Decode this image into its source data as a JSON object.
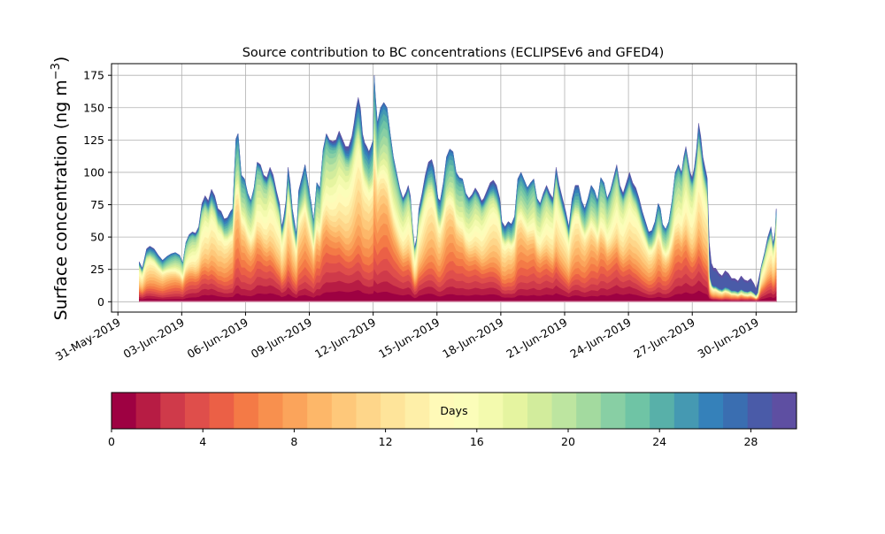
{
  "chart_data": {
    "type": "area",
    "title": "Source contribution to BC concentrations (ECLIPSEv6 and GFED4)",
    "ylabel_main": "Surface concentration (ng m",
    "ylabel_sup": "−3",
    "ylabel_close": ")",
    "xlabel": "",
    "ylim": [
      -8,
      184
    ],
    "xlim": [
      -0.3,
      31.9
    ],
    "x_start_label": "31-May-2019",
    "grid": true,
    "yticks": [
      0,
      25,
      50,
      75,
      100,
      125,
      150,
      175
    ],
    "xticks": [
      {
        "x": 0,
        "label": "31-May-2019"
      },
      {
        "x": 3,
        "label": "03-Jun-2019"
      },
      {
        "x": 6,
        "label": "06-Jun-2019"
      },
      {
        "x": 9,
        "label": "09-Jun-2019"
      },
      {
        "x": 12,
        "label": "12-Jun-2019"
      },
      {
        "x": 15,
        "label": "15-Jun-2019"
      },
      {
        "x": 18,
        "label": "18-Jun-2019"
      },
      {
        "x": 21,
        "label": "21-Jun-2019"
      },
      {
        "x": 24,
        "label": "24-Jun-2019"
      },
      {
        "x": 27,
        "label": "27-Jun-2019"
      },
      {
        "x": 30,
        "label": "30-Jun-2019"
      }
    ],
    "total_series": [
      [
        1.0,
        31
      ],
      [
        1.15,
        26
      ],
      [
        1.35,
        41
      ],
      [
        1.5,
        43
      ],
      [
        1.7,
        41
      ],
      [
        1.9,
        36
      ],
      [
        2.1,
        32
      ],
      [
        2.3,
        35
      ],
      [
        2.5,
        37
      ],
      [
        2.7,
        38
      ],
      [
        2.9,
        36
      ],
      [
        3.05,
        30
      ],
      [
        3.2,
        46
      ],
      [
        3.35,
        52
      ],
      [
        3.5,
        54
      ],
      [
        3.65,
        53
      ],
      [
        3.8,
        58
      ],
      [
        3.95,
        76
      ],
      [
        4.1,
        82
      ],
      [
        4.25,
        78
      ],
      [
        4.4,
        87
      ],
      [
        4.55,
        82
      ],
      [
        4.7,
        72
      ],
      [
        4.85,
        70
      ],
      [
        5.0,
        64
      ],
      [
        5.15,
        65
      ],
      [
        5.3,
        70
      ],
      [
        5.4,
        72
      ],
      [
        5.55,
        126
      ],
      [
        5.65,
        130
      ],
      [
        5.8,
        98
      ],
      [
        5.95,
        95
      ],
      [
        6.1,
        84
      ],
      [
        6.25,
        78
      ],
      [
        6.4,
        88
      ],
      [
        6.55,
        108
      ],
      [
        6.7,
        106
      ],
      [
        6.85,
        98
      ],
      [
        7.0,
        96
      ],
      [
        7.15,
        104
      ],
      [
        7.3,
        98
      ],
      [
        7.45,
        86
      ],
      [
        7.6,
        76
      ],
      [
        7.7,
        58
      ],
      [
        7.8,
        66
      ],
      [
        7.9,
        78
      ],
      [
        8.0,
        104
      ],
      [
        8.1,
        92
      ],
      [
        8.2,
        72
      ],
      [
        8.3,
        62
      ],
      [
        8.4,
        52
      ],
      [
        8.5,
        86
      ],
      [
        8.65,
        96
      ],
      [
        8.8,
        106
      ],
      [
        8.95,
        90
      ],
      [
        9.1,
        75
      ],
      [
        9.2,
        62
      ],
      [
        9.35,
        92
      ],
      [
        9.5,
        88
      ],
      [
        9.65,
        118
      ],
      [
        9.8,
        130
      ],
      [
        9.95,
        125
      ],
      [
        10.1,
        124
      ],
      [
        10.25,
        125
      ],
      [
        10.4,
        132
      ],
      [
        10.55,
        126
      ],
      [
        10.7,
        120
      ],
      [
        10.85,
        120
      ],
      [
        11.0,
        128
      ],
      [
        11.1,
        138
      ],
      [
        11.2,
        150
      ],
      [
        11.3,
        158
      ],
      [
        11.4,
        150
      ],
      [
        11.5,
        130
      ],
      [
        11.6,
        123
      ],
      [
        11.7,
        120
      ],
      [
        11.8,
        116
      ],
      [
        11.9,
        120
      ],
      [
        12.0,
        125
      ],
      [
        12.05,
        175
      ],
      [
        12.1,
        160
      ],
      [
        12.2,
        138
      ],
      [
        12.35,
        150
      ],
      [
        12.5,
        154
      ],
      [
        12.65,
        150
      ],
      [
        12.8,
        130
      ],
      [
        12.95,
        112
      ],
      [
        13.1,
        100
      ],
      [
        13.25,
        88
      ],
      [
        13.4,
        80
      ],
      [
        13.55,
        85
      ],
      [
        13.65,
        90
      ],
      [
        13.75,
        82
      ],
      [
        13.85,
        58
      ],
      [
        13.95,
        42
      ],
      [
        14.05,
        50
      ],
      [
        14.15,
        72
      ],
      [
        14.3,
        84
      ],
      [
        14.45,
        98
      ],
      [
        14.6,
        108
      ],
      [
        14.75,
        110
      ],
      [
        14.85,
        104
      ],
      [
        14.95,
        92
      ],
      [
        15.05,
        80
      ],
      [
        15.15,
        78
      ],
      [
        15.3,
        92
      ],
      [
        15.45,
        112
      ],
      [
        15.6,
        118
      ],
      [
        15.75,
        116
      ],
      [
        15.9,
        100
      ],
      [
        16.05,
        96
      ],
      [
        16.2,
        95
      ],
      [
        16.35,
        84
      ],
      [
        16.5,
        80
      ],
      [
        16.65,
        83
      ],
      [
        16.8,
        88
      ],
      [
        16.95,
        84
      ],
      [
        17.1,
        78
      ],
      [
        17.2,
        80
      ],
      [
        17.35,
        86
      ],
      [
        17.5,
        92
      ],
      [
        17.65,
        94
      ],
      [
        17.8,
        90
      ],
      [
        17.95,
        80
      ],
      [
        18.05,
        62
      ],
      [
        18.2,
        58
      ],
      [
        18.35,
        62
      ],
      [
        18.5,
        60
      ],
      [
        18.65,
        66
      ],
      [
        18.8,
        95
      ],
      [
        18.95,
        100
      ],
      [
        19.1,
        94
      ],
      [
        19.25,
        88
      ],
      [
        19.4,
        92
      ],
      [
        19.55,
        95
      ],
      [
        19.7,
        80
      ],
      [
        19.85,
        76
      ],
      [
        20.0,
        84
      ],
      [
        20.15,
        90
      ],
      [
        20.3,
        84
      ],
      [
        20.45,
        80
      ],
      [
        20.6,
        104
      ],
      [
        20.75,
        90
      ],
      [
        20.9,
        80
      ],
      [
        21.05,
        70
      ],
      [
        21.2,
        58
      ],
      [
        21.35,
        80
      ],
      [
        21.5,
        90
      ],
      [
        21.65,
        90
      ],
      [
        21.8,
        78
      ],
      [
        21.95,
        72
      ],
      [
        22.1,
        80
      ],
      [
        22.25,
        90
      ],
      [
        22.4,
        86
      ],
      [
        22.55,
        78
      ],
      [
        22.7,
        96
      ],
      [
        22.85,
        92
      ],
      [
        23.0,
        80
      ],
      [
        23.15,
        86
      ],
      [
        23.3,
        96
      ],
      [
        23.45,
        106
      ],
      [
        23.6,
        90
      ],
      [
        23.75,
        84
      ],
      [
        23.9,
        92
      ],
      [
        24.05,
        100
      ],
      [
        24.2,
        92
      ],
      [
        24.35,
        88
      ],
      [
        24.5,
        80
      ],
      [
        24.65,
        70
      ],
      [
        24.8,
        62
      ],
      [
        24.95,
        54
      ],
      [
        25.1,
        55
      ],
      [
        25.25,
        62
      ],
      [
        25.4,
        76
      ],
      [
        25.5,
        72
      ],
      [
        25.6,
        60
      ],
      [
        25.75,
        56
      ],
      [
        25.9,
        62
      ],
      [
        26.05,
        78
      ],
      [
        26.2,
        100
      ],
      [
        26.35,
        106
      ],
      [
        26.5,
        100
      ],
      [
        26.6,
        112
      ],
      [
        26.7,
        120
      ],
      [
        26.8,
        110
      ],
      [
        26.9,
        100
      ],
      [
        27.0,
        96
      ],
      [
        27.1,
        104
      ],
      [
        27.2,
        118
      ],
      [
        27.3,
        138
      ],
      [
        27.4,
        128
      ],
      [
        27.5,
        112
      ],
      [
        27.6,
        104
      ],
      [
        27.7,
        96
      ],
      [
        27.8,
        46
      ],
      [
        27.9,
        30
      ],
      [
        28.0,
        26
      ],
      [
        28.1,
        26
      ],
      [
        28.25,
        22
      ],
      [
        28.4,
        20
      ],
      [
        28.55,
        24
      ],
      [
        28.7,
        22
      ],
      [
        28.85,
        18
      ],
      [
        29.0,
        18
      ],
      [
        29.15,
        16
      ],
      [
        29.3,
        20
      ],
      [
        29.45,
        17
      ],
      [
        29.6,
        16
      ],
      [
        29.75,
        18
      ],
      [
        29.9,
        14
      ],
      [
        30.0,
        10
      ],
      [
        30.1,
        16
      ],
      [
        30.25,
        28
      ],
      [
        30.4,
        38
      ],
      [
        30.55,
        50
      ],
      [
        30.7,
        58
      ],
      [
        30.8,
        45
      ],
      [
        30.9,
        55
      ],
      [
        30.95,
        72
      ]
    ],
    "colorbar": {
      "label": "Days",
      "min": 0,
      "max": 30,
      "ticks": [
        0,
        4,
        8,
        12,
        16,
        20,
        24,
        28
      ],
      "colors": [
        "#9e0142",
        "#b71c44",
        "#cf3a4a",
        "#df4e4b",
        "#eb6046",
        "#f47a46",
        "#f8904e",
        "#fba45b",
        "#fdb769",
        "#fec87a",
        "#fed68a",
        "#fee49a",
        "#feefa8",
        "#fffab8",
        "#fbfdb9",
        "#f3faae",
        "#e5f4a0",
        "#d2ec9c",
        "#bde5a0",
        "#a3da9f",
        "#88cfa4",
        "#6fc4a5",
        "#58b0a9",
        "#4599b2",
        "#3581ba",
        "#3a6eb1",
        "#4a5ba8",
        "#5e4fa2"
      ]
    }
  }
}
